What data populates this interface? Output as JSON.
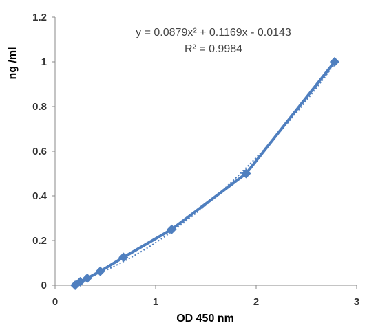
{
  "chart_data": {
    "type": "scatter",
    "xlabel": "OD 450 nm",
    "ylabel": "ng /ml",
    "xlim": [
      0,
      3
    ],
    "ylim": [
      0,
      1.2
    ],
    "x_ticks": [
      "0",
      "1",
      "2",
      "3"
    ],
    "y_ticks": [
      "0",
      "0.2",
      "0.4",
      "0.6",
      "0.8",
      "1",
      "1.2"
    ],
    "grid": false,
    "legend": "none",
    "series": [
      {
        "x": [
          0.2,
          0.25,
          0.32,
          0.45,
          0.68,
          1.16,
          1.9,
          2.78
        ],
        "y": [
          0.0,
          0.0156,
          0.0313,
          0.0625,
          0.125,
          0.25,
          0.5,
          1.0
        ],
        "color": "#4f7fbf",
        "marker": "diamond"
      }
    ],
    "trendline": {
      "kind": "polynomial",
      "a": 0.0879,
      "b": 0.1169,
      "c": -0.0143,
      "x_range": [
        0.2,
        2.78
      ],
      "style": "dotted",
      "color": "#4f7fbf"
    },
    "equation_lines": [
      "y = 0.0879x² + 0.1169x - 0.0143",
      "R² = 0.9984"
    ]
  }
}
